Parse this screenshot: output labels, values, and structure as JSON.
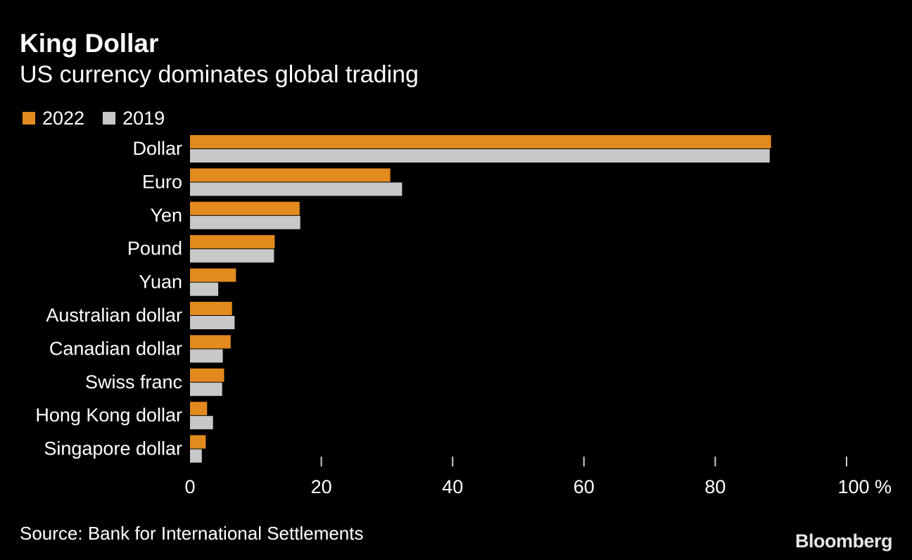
{
  "title": "King Dollar",
  "subtitle": "US currency dominates global trading",
  "source": "Source: Bank for International Settlements",
  "brand": "Bloomberg",
  "colors": {
    "background": "#000000",
    "series_2022": "#e38a1e",
    "series_2019": "#c8c8c8",
    "text": "#ffffff",
    "tick": "#cccccc"
  },
  "chart_data": {
    "type": "bar",
    "orientation": "horizontal",
    "title": "King Dollar",
    "subtitle": "US currency dominates global trading",
    "categories": [
      "Dollar",
      "Euro",
      "Yen",
      "Pound",
      "Yuan",
      "Australian dollar",
      "Canadian dollar",
      "Swiss franc",
      "Hong Kong dollar",
      "Singapore dollar"
    ],
    "series": [
      {
        "name": "2022",
        "values": [
          88.5,
          30.5,
          16.7,
          12.9,
          7.0,
          6.4,
          6.2,
          5.2,
          2.6,
          2.4
        ]
      },
      {
        "name": "2019",
        "values": [
          88.3,
          32.3,
          16.8,
          12.8,
          4.3,
          6.8,
          5.0,
          4.9,
          3.5,
          1.8
        ]
      }
    ],
    "xlim": [
      0,
      100
    ],
    "xticks": [
      0,
      20,
      40,
      60,
      80,
      100
    ],
    "xtick_labels": [
      "0",
      "20",
      "40",
      "60",
      "80",
      "100 %"
    ],
    "xlabel": "",
    "ylabel": "",
    "legend_position": "top-left",
    "grid": false
  }
}
